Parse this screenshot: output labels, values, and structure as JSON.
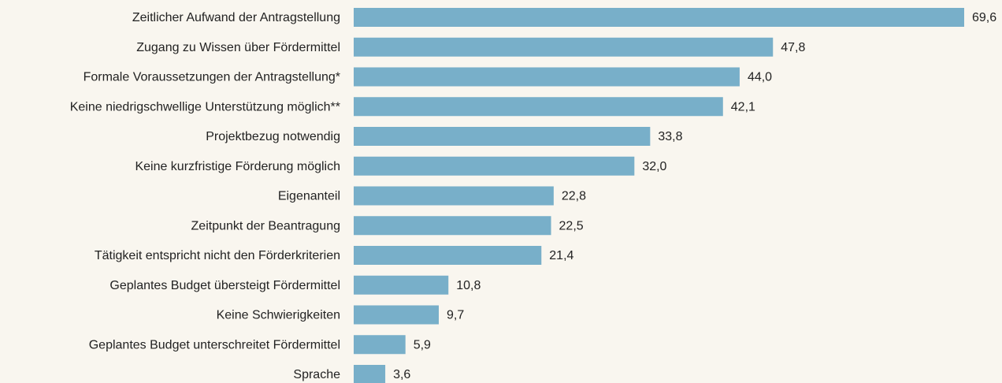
{
  "chart_data": {
    "type": "bar",
    "orientation": "horizontal",
    "color": "#78afc9",
    "categories": [
      "Zeitlicher Aufwand der Antragstellung",
      "Zugang zu Wissen über Fördermittel",
      "Formale Voraussetzungen der Antragstellung*",
      "Keine niedrigschwellige Unterstützung möglich**",
      "Projektbezug notwendig",
      "Keine kurzfristige Förderung möglich",
      "Eigenanteil",
      "Zeitpunkt der Beantragung",
      "Tätigkeit entspricht nicht den Förderkriterien",
      "Geplantes Budget übersteigt Fördermittel",
      "Keine Schwierigkeiten",
      "Geplantes Budget unterschreitet Fördermittel",
      "Sprache"
    ],
    "values": [
      69.6,
      47.8,
      44.0,
      42.1,
      33.8,
      32.0,
      22.8,
      22.5,
      21.4,
      10.8,
      9.7,
      5.9,
      3.6
    ],
    "value_labels": [
      "69,6",
      "47,8",
      "44,0",
      "42,1",
      "33,8",
      "32,0",
      "22,8",
      "22,5",
      "21,4",
      "10,8",
      "9,7",
      "5,9",
      "3,6"
    ]
  }
}
